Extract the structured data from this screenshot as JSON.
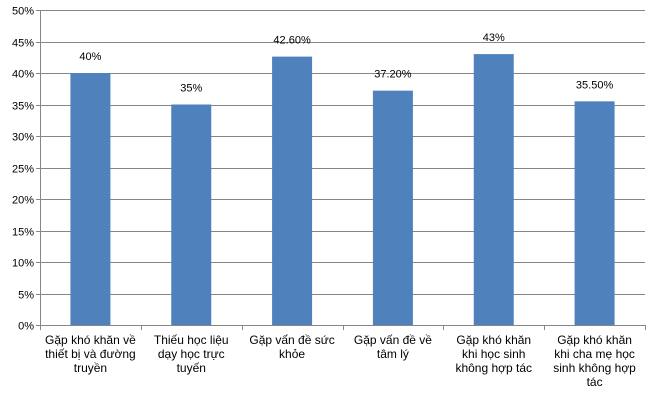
{
  "chart_data": {
    "type": "bar",
    "categories": [
      "Gặp khó khăn về thiết bị và đường truyền",
      "Thiếu học liệu dạy học trực tuyến",
      "Gặp vấn đề sức khỏe",
      "Gặp vấn đề về tâm lý",
      "Gặp khó khăn khi học sinh không hợp tác",
      "Gặp khó khăn khi cha mẹ học sinh không hợp tác"
    ],
    "values": [
      40,
      35,
      42.6,
      37.2,
      43,
      35.5
    ],
    "data_labels": [
      "40%",
      "35%",
      "42.60%",
      "37.20%",
      "43%",
      "35.50%"
    ],
    "ylim": [
      0,
      50
    ],
    "yticks": [
      "0%",
      "5%",
      "10%",
      "15%",
      "20%",
      "25%",
      "30%",
      "35%",
      "40%",
      "45%",
      "50%"
    ],
    "grid": true,
    "bar_color": "#4f81bd",
    "title": "",
    "xlabel": "",
    "ylabel": ""
  }
}
